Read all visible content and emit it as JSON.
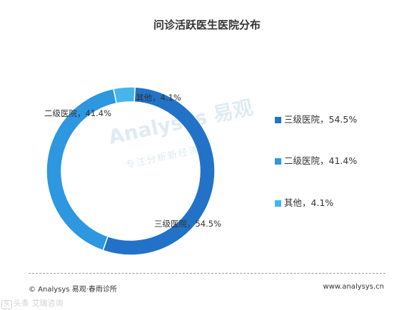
{
  "chart_data": {
    "type": "pie",
    "title": "问诊活跃医生医院分布",
    "categories": [
      "三级医院",
      "二级医院",
      "其他"
    ],
    "values": [
      54.5,
      41.4,
      4.1
    ],
    "slice_labels": [
      "三级医院，54.5%",
      "二级医院，41.4%",
      "其他，4.1%"
    ],
    "legend": {
      "placement": "right",
      "entries": [
        "三级医院，54.5%",
        "二级医院，41.4%",
        "其他，4.1%"
      ]
    },
    "colors": [
      "#2272c8",
      "#2d97e0",
      "#47b5eb"
    ]
  },
  "watermark": {
    "brand": "Analysys 易观",
    "tagline": "专注分析新经济"
  },
  "footer": {
    "left": "© Analysys 易观·春雨诊所",
    "right": "www.analysys.cn",
    "overlay": "头条 艾瑞咨询"
  }
}
